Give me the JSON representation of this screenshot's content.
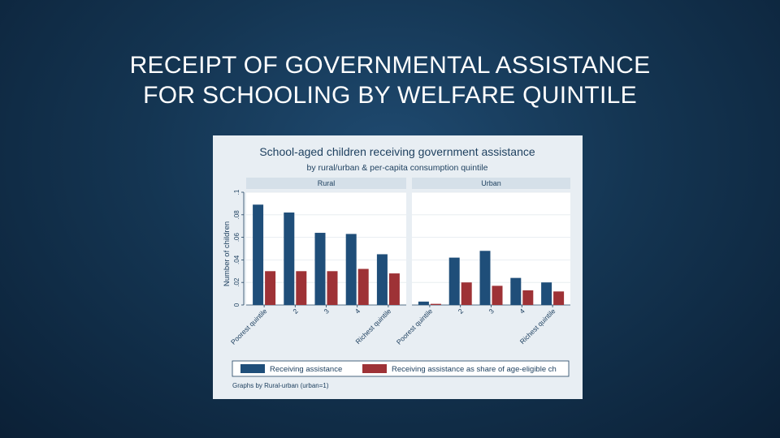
{
  "slide": {
    "title_line1": "RECEIPT OF GOVERNMENTAL ASSISTANCE",
    "title_line2": "FOR SCHOOLING BY WELFARE QUINTILE",
    "background_color": "#143552"
  },
  "chart_data": {
    "type": "bar",
    "title": "School-aged children receiving government assistance",
    "subtitle": "by rural/urban & per-capita consumption quintile",
    "ylabel": "Number of children",
    "ylim": [
      0,
      0.1
    ],
    "yticks": [
      "0",
      ".02",
      ".04",
      ".06",
      ".08",
      ".1"
    ],
    "ytick_values": [
      0,
      0.02,
      0.04,
      0.06,
      0.08,
      0.1
    ],
    "categories": [
      "Poorest quintile",
      "2",
      "3",
      "4",
      "Richest quintile"
    ],
    "panels": [
      {
        "name": "Rural",
        "series": [
          {
            "name": "Receiving assistance",
            "values": [
              0.089,
              0.082,
              0.064,
              0.063,
              0.045
            ]
          },
          {
            "name": "Receiving assistance as share of age-eligible ch",
            "values": [
              0.03,
              0.03,
              0.03,
              0.032,
              0.028
            ]
          }
        ]
      },
      {
        "name": "Urban",
        "series": [
          {
            "name": "Receiving assistance",
            "values": [
              0.003,
              0.042,
              0.048,
              0.024,
              0.02
            ]
          },
          {
            "name": "Receiving assistance as share of age-eligible ch",
            "values": [
              0.001,
              0.02,
              0.017,
              0.013,
              0.012
            ]
          }
        ]
      }
    ],
    "legend": {
      "placement": "bottom",
      "labels": [
        "Receiving assistance",
        "Receiving assistance as share of age-eligible ch"
      ]
    },
    "note": "Graphs by Rural-urban (urban=1)",
    "colors": {
      "series1": "#1f4e79",
      "series2": "#9e3236",
      "plot_background": "#ffffff",
      "panel_header": "#e8eef3",
      "outer_background": "#e8eef3",
      "grid": "#e3e9ee"
    },
    "grid": true
  }
}
